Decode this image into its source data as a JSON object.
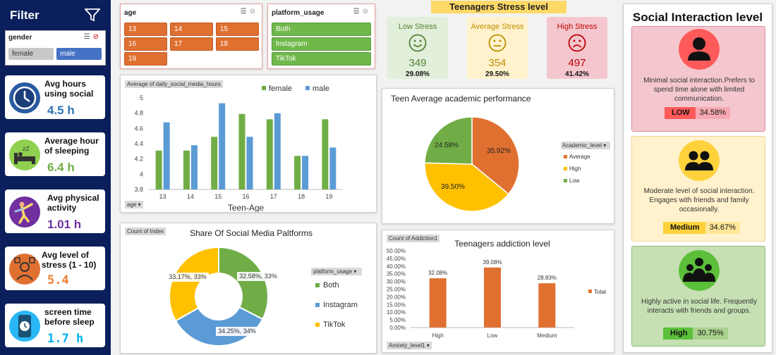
{
  "sidebar": {
    "title": "Filter",
    "gender_slicer": {
      "title": "gender",
      "options": [
        "female",
        "male"
      ]
    },
    "kpis": [
      {
        "label": "Avg hours using social",
        "value": "4.5 h",
        "color": "#2e75b6"
      },
      {
        "label": "Average hour of sleeping",
        "value": "6.4 h",
        "color": "#70ad47"
      },
      {
        "label": "Avg physical activity",
        "value": "1.01 h",
        "color": "#7030a0"
      },
      {
        "label": "Avg level of stress (1 - 10)",
        "value": "5.4",
        "color": "#ed7d31"
      },
      {
        "label": "screen time before sleep",
        "value": "1.7 h",
        "color": "#00b0f0"
      }
    ]
  },
  "age_slicer": {
    "title": "age",
    "options": [
      "13",
      "14",
      "15",
      "16",
      "17",
      "18",
      "19"
    ]
  },
  "platform_slicer": {
    "title": "platform_usage",
    "options": [
      "Both",
      "Instagram",
      "TikTok"
    ]
  },
  "stress": {
    "title": "Teenagers Stress level",
    "cards": [
      {
        "label": "Low Stress",
        "count": "349",
        "pct": "29.08%",
        "bg": "#e2efda",
        "fg": "#548235"
      },
      {
        "label": "Average Stress",
        "count": "354",
        "pct": "29.50%",
        "bg": "#fff2cc",
        "fg": "#bf8f00"
      },
      {
        "label": "High Stress",
        "count": "497",
        "pct": "41.42%",
        "bg": "#f4c7ce",
        "fg": "#c00000"
      }
    ]
  },
  "social": {
    "title": "Social Interaction level",
    "cards": [
      {
        "text": "Minimal social interaction.Prefers to spend time alone with limited communication.",
        "level": "LOW",
        "pct": "34.58%",
        "bg": "#f4c7ce",
        "border": "#d88a95",
        "circle": "#ff5a5a",
        "badge_k": "#ff5a5a",
        "badge_v": "#f7a8b0"
      },
      {
        "text": "Moderate level of social interaction. Engages with friends and family occasionally.",
        "level": "Medium",
        "pct": "34.67%",
        "bg": "#fff2cc",
        "border": "#f0d890",
        "circle": "#ffd23c",
        "badge_k": "#ffd23c",
        "badge_v": "#ffe699"
      },
      {
        "text": "Highly active in social life. Frequently interacts with friends and groups.",
        "level": "High",
        "pct": "30.75%",
        "bg": "#c6e0b4",
        "border": "#8fc070",
        "circle": "#5bbf3a",
        "badge_k": "#5bbf3a",
        "badge_v": "#a9d18e"
      }
    ]
  },
  "bar_chart": {
    "tag": "Average of daily_social_media_hours",
    "filter_tag": "age",
    "chart_data": {
      "type": "bar",
      "categories": [
        "13",
        "14",
        "15",
        "16",
        "17",
        "18",
        "19"
      ],
      "series": [
        {
          "name": "female",
          "values": [
            4.31,
            4.31,
            4.49,
            4.79,
            4.72,
            4.24,
            4.72
          ],
          "color": "#70ad47"
        },
        {
          "name": "male",
          "values": [
            4.68,
            4.38,
            4.93,
            4.49,
            4.8,
            4.24,
            4.35
          ],
          "color": "#5b9bd5"
        }
      ],
      "xlabel": "Teen-Age",
      "ylim": [
        3.8,
        5
      ],
      "yticks": [
        "3.8",
        "4",
        "4.2",
        "4.4",
        "4.6",
        "4.8",
        "5"
      ]
    }
  },
  "donut_chart": {
    "tag": "Count of Index",
    "chart_data": {
      "type": "pie",
      "title": "Share Of Social Media Paltforms",
      "legend_title": "platform_usage",
      "slices": [
        {
          "name": "Both",
          "value": 32.58,
          "label": "32.58%, 33%",
          "color": "#70ad47"
        },
        {
          "name": "Instagram",
          "value": 34.25,
          "label": "34.25%, 34%",
          "color": "#5b9bd5"
        },
        {
          "name": "TikTok",
          "value": 33.17,
          "label": "33.17%, 33%",
          "color": "#ffc000"
        }
      ]
    }
  },
  "pie_chart": {
    "chart_data": {
      "type": "pie",
      "title": "Teen Average academic performance",
      "legend_title": "Academic_level",
      "slices": [
        {
          "name": "Average",
          "value": 35.92,
          "label": "35.92%",
          "color": "#e07030"
        },
        {
          "name": "High",
          "value": 39.5,
          "label": "39.50%",
          "color": "#ffc000"
        },
        {
          "name": "Low",
          "value": 24.58,
          "label": "24.58%",
          "color": "#70ad47"
        }
      ]
    }
  },
  "addiction_chart": {
    "tag": "Count of Addiction1",
    "filter_tag": "Anxiety_level1",
    "chart_data": {
      "type": "bar",
      "title": "Teenagers addiction level",
      "categories": [
        "High",
        "Low",
        "Medium"
      ],
      "values": [
        32.08,
        39.08,
        28.83
      ],
      "labels": [
        "32.08%",
        "39.08%",
        "28.83%"
      ],
      "legend": "Total",
      "ylim": [
        0,
        50
      ],
      "yticks": [
        "0.00%",
        "5.00%",
        "10.00%",
        "15.00%",
        "20.00%",
        "25.00%",
        "30.00%",
        "35.00%",
        "40.00%",
        "45.00%",
        "50.00%"
      ]
    }
  }
}
